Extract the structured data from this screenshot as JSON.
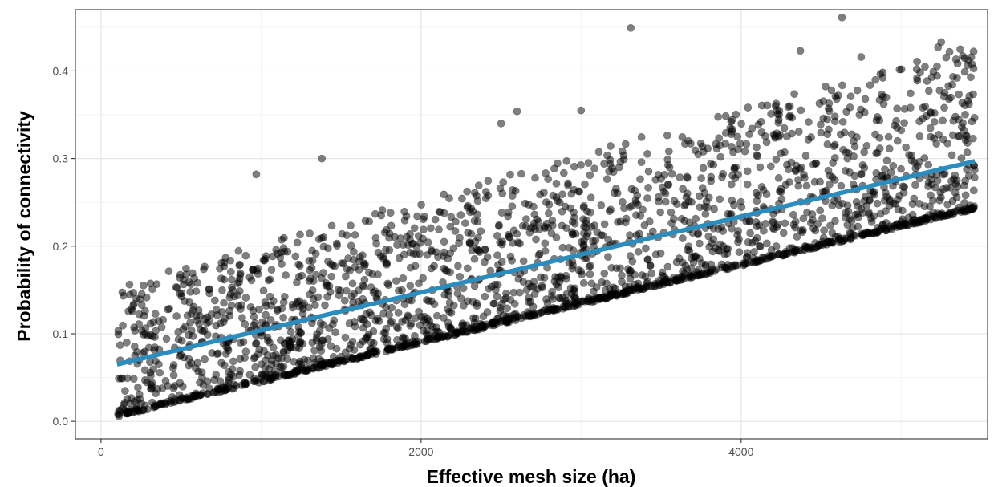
{
  "chart_data": {
    "type": "scatter",
    "xlabel": "Effective mesh size (ha)",
    "ylabel": "Probability of connectivity",
    "xlim": [
      -160,
      5540
    ],
    "ylim": [
      -0.02,
      0.47
    ],
    "x_ticks": [
      0,
      2000,
      4000
    ],
    "x_tick_labels": [
      "0",
      "2000",
      "4000"
    ],
    "y_ticks": [
      0.0,
      0.1,
      0.2,
      0.3,
      0.4
    ],
    "y_tick_labels": [
      "0.0",
      "0.1",
      "0.2",
      "0.3",
      "0.4"
    ],
    "grid": true,
    "point_color": "#000000",
    "point_opacity": 0.5,
    "fit_line": {
      "type": "linear",
      "x": [
        100,
        5460
      ],
      "y": [
        0.065,
        0.297
      ],
      "color": "#2b8cbe"
    },
    "lower_bound_line": {
      "x": [
        100,
        5460
      ],
      "y": [
        0.005,
        0.242
      ]
    },
    "notable_points": [
      {
        "x": 3310,
        "y": 0.449
      },
      {
        "x": 4630,
        "y": 0.461
      },
      {
        "x": 5230,
        "y": 0.427
      },
      {
        "x": 5250,
        "y": 0.433
      },
      {
        "x": 1380,
        "y": 0.3
      },
      {
        "x": 970,
        "y": 0.282
      },
      {
        "x": 2600,
        "y": 0.354
      },
      {
        "x": 2500,
        "y": 0.34
      },
      {
        "x": 3000,
        "y": 0.355
      },
      {
        "x": 4370,
        "y": 0.423
      },
      {
        "x": 4750,
        "y": 0.416
      }
    ],
    "point_count_approx": 2500
  }
}
